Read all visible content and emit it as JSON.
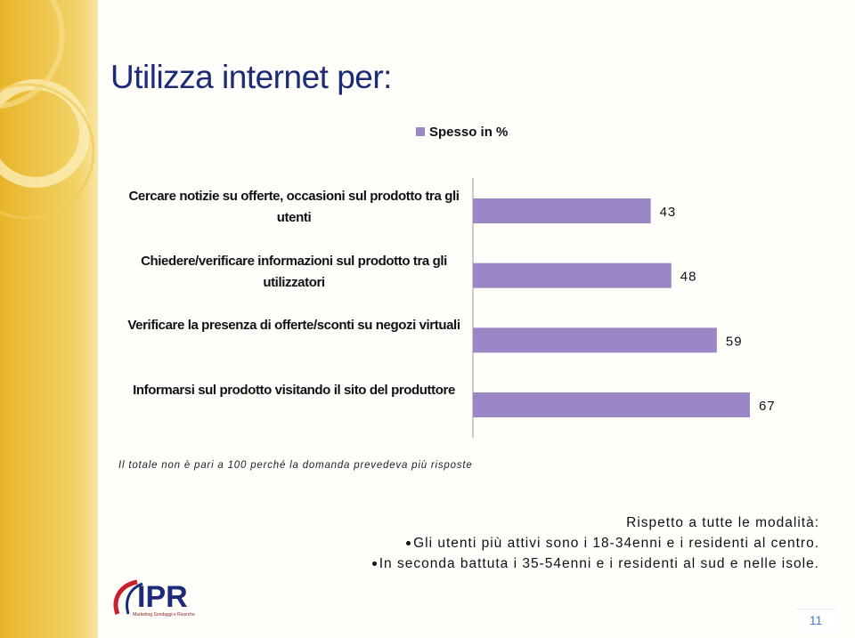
{
  "title": "Utilizza internet per:",
  "chart_data": {
    "type": "bar",
    "orientation": "horizontal",
    "categories": [
      "Cercare notizie su offerte, occasioni sul prodotto tra gli utenti",
      "Chiedere/verificare informazioni sul prodotto tra gli utilizzatori",
      "Verificare la presenza di offerte/sconti su negozi virtuali",
      "Informarsi sul prodotto visitando il sito del produttore"
    ],
    "series": [
      {
        "name": "Spesso in %",
        "color": "#9b87c5",
        "values": [
          43,
          48,
          59,
          67
        ]
      }
    ]
  },
  "note": "Il totale non è pari a 100 perché la domanda prevedeva più risposte",
  "comment": {
    "heading": "Rispetto a tutte le modalità:",
    "bullets": [
      "Gli utenti più attivi sono i 18-34enni e i residenti al centro.",
      "In seconda battuta i 35-54enni e i residenti al sud e nelle isole."
    ]
  },
  "logo": {
    "name": "IPR",
    "tagline": "Marketing Sondaggi e Ricerche"
  },
  "page_number": 11
}
